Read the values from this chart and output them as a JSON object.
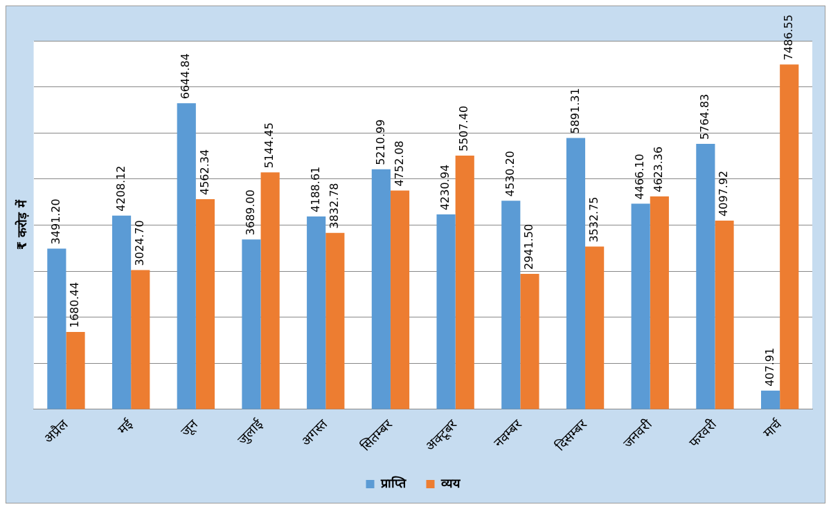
{
  "chart_data": {
    "type": "bar",
    "ylabel": "₹ करोड़ में",
    "categories": [
      "अप्रैल",
      "मई",
      "जून",
      "जुलाई",
      "अगस्त",
      "सितम्बर",
      "अक्टूबर",
      "नवम्बर",
      "दिसम्बर",
      "जनवरी",
      "फरवरी",
      "मार्च"
    ],
    "series": [
      {
        "name": "प्राप्ति",
        "color": "#5b9bd5",
        "values": [
          3491.2,
          4208.12,
          6644.84,
          3689.0,
          4188.61,
          5210.99,
          4230.94,
          4530.2,
          5891.31,
          4466.1,
          5764.83,
          407.91
        ],
        "value_labels": [
          "3491.20",
          "4208.12",
          "6644.84",
          "3689.00",
          "4188.61",
          "5210.99",
          "4230.94",
          "4530.20",
          "5891.31",
          "4466.10",
          "5764.83",
          "407.91"
        ]
      },
      {
        "name": "व्यय",
        "color": "#ed7d31",
        "values": [
          1680.44,
          3024.7,
          4562.34,
          5144.45,
          3832.78,
          4752.08,
          5507.4,
          2941.5,
          3532.75,
          4623.36,
          4097.92,
          7486.55
        ],
        "value_labels": [
          "1680.44",
          "3024.70",
          "4562.34",
          "5144.45",
          "3832.78",
          "4752.08",
          "5507.40",
          "2941.50",
          "3532.75",
          "4623.36",
          "4097.92",
          "7486.55"
        ]
      }
    ],
    "ylim": [
      0,
      8000
    ],
    "yticks": [
      {
        "value": 0,
        "label": null
      },
      {
        "value": 1000,
        "label": null
      },
      {
        "value": 2000,
        "label": null
      },
      {
        "value": 3000,
        "label": null
      },
      {
        "value": 4000,
        "label": null
      },
      {
        "value": 5000,
        "label": null
      },
      {
        "value": 6000,
        "label": null
      },
      {
        "value": 7000,
        "label": null
      },
      {
        "value": 8000,
        "label": null
      }
    ],
    "tick_labels": "x",
    "grid": "y",
    "legend": "bottom"
  }
}
